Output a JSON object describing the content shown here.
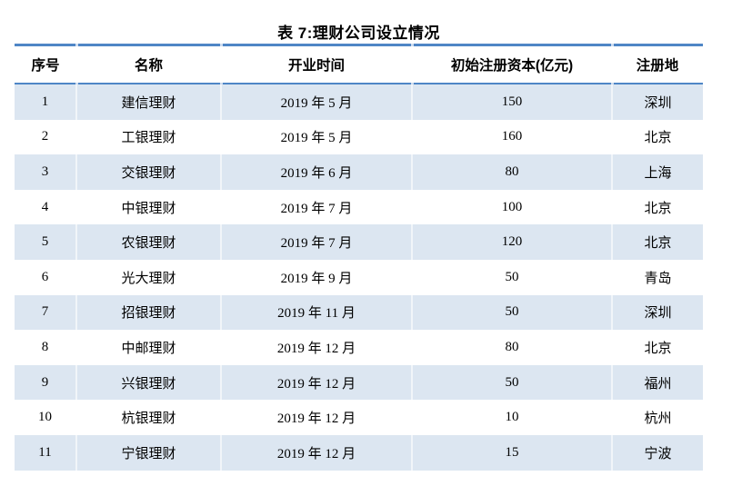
{
  "table": {
    "title": "表 7:理财公司设立情况",
    "columns": [
      "序号",
      "名称",
      "开业时间",
      "初始注册资本(亿元)",
      "注册地"
    ],
    "rows": [
      [
        "1",
        "建信理财",
        "2019 年 5 月",
        "150",
        "深圳"
      ],
      [
        "2",
        "工银理财",
        "2019 年 5 月",
        "160",
        "北京"
      ],
      [
        "3",
        "交银理财",
        "2019 年 6 月",
        "80",
        "上海"
      ],
      [
        "4",
        "中银理财",
        "2019 年 7 月",
        "100",
        "北京"
      ],
      [
        "5",
        "农银理财",
        "2019 年 7 月",
        "120",
        "北京"
      ],
      [
        "6",
        "光大理财",
        "2019 年 9 月",
        "50",
        "青岛"
      ],
      [
        "7",
        "招银理财",
        "2019 年 11 月",
        "50",
        "深圳"
      ],
      [
        "8",
        "中邮理财",
        "2019 年 12 月",
        "80",
        "北京"
      ],
      [
        "9",
        "兴银理财",
        "2019 年 12 月",
        "50",
        "福州"
      ],
      [
        "10",
        "杭银理财",
        "2019 年 12 月",
        "10",
        "杭州"
      ],
      [
        "11",
        "宁银理财",
        "2019 年 12 月",
        "15",
        "宁波"
      ]
    ],
    "colors": {
      "rule_blue": "#4f86c6",
      "stripe_blue": "#dce6f1"
    }
  }
}
